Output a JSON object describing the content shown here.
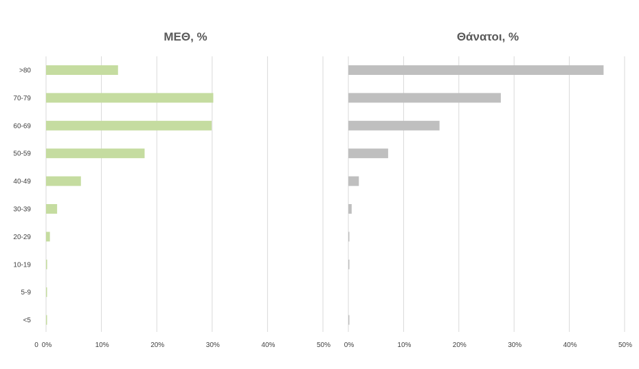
{
  "chart_data": [
    {
      "type": "bar",
      "orientation": "horizontal",
      "title": "ΜΕΘ, %",
      "categories": [
        ">80",
        "70-79",
        "60-69",
        "50-59",
        "40-49",
        "30-39",
        "20-29",
        "10-19",
        "5-9",
        "<5"
      ],
      "values": [
        13,
        30.2,
        29.9,
        17.8,
        6.3,
        2.0,
        0.7,
        0.2,
        0.05,
        0.05
      ],
      "color": "#c5dca0",
      "xlim": [
        0,
        50
      ],
      "x_ticks": [
        0,
        10,
        20,
        30,
        40,
        50
      ],
      "x_tick_labels": [
        "0%",
        "10%",
        "20%",
        "30%",
        "40%",
        "50%"
      ],
      "origin_label": "0",
      "grid": true,
      "legend": "none"
    },
    {
      "type": "bar",
      "orientation": "horizontal",
      "title": "Θάνατοι, %",
      "categories": [
        ">80",
        "70-79",
        "60-69",
        "50-59",
        "40-49",
        "30-39",
        "20-29",
        "10-19",
        "5-9",
        "<5"
      ],
      "values": [
        46.2,
        27.6,
        16.5,
        7.2,
        1.9,
        0.6,
        0.15,
        0.15,
        0,
        0.15
      ],
      "color": "#bfbfbf",
      "xlim": [
        0,
        50
      ],
      "x_ticks": [
        0,
        10,
        20,
        30,
        40,
        50
      ],
      "x_tick_labels": [
        "0%",
        "10%",
        "20%",
        "30%",
        "40%",
        "50%"
      ],
      "grid": true,
      "legend": "none"
    }
  ]
}
